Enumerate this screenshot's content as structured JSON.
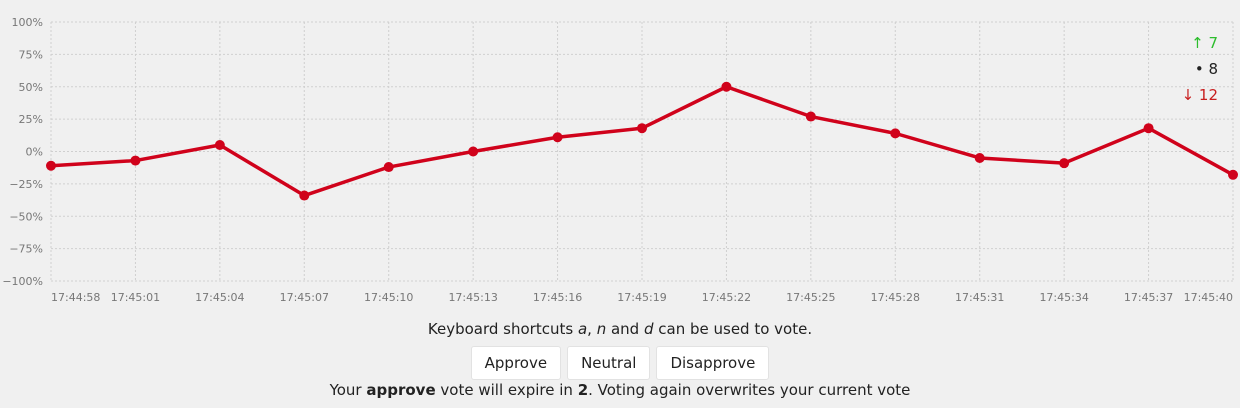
{
  "chart_data": {
    "type": "line",
    "x": [
      "17:44:58",
      "17:45:01",
      "17:45:04",
      "17:45:07",
      "17:45:10",
      "17:45:13",
      "17:45:16",
      "17:45:19",
      "17:45:22",
      "17:45:25",
      "17:45:28",
      "17:45:31",
      "17:45:34",
      "17:45:37",
      "17:45:40"
    ],
    "series": [
      {
        "values": [
          -11,
          -7,
          5,
          -34,
          -12,
          0,
          11,
          18,
          50,
          27,
          14,
          -5,
          -9,
          18,
          -18
        ]
      }
    ],
    "yticks": [
      "100%",
      "75%",
      "50%",
      "25%",
      "0%",
      "−25%",
      "−50%",
      "−75%",
      "−100%"
    ],
    "ylim": [
      -100,
      100
    ],
    "grid": true,
    "line_color": "#d0021b"
  },
  "tally": {
    "up": "↑ 7",
    "neutral": "• 8",
    "down": "↓ 12"
  },
  "shortcuts": {
    "pre": "Keyboard shortcuts ",
    "a": "a",
    "sep1": ", ",
    "n": "n",
    "mid": " and ",
    "d": "d",
    "post": " can be used to vote."
  },
  "buttons": {
    "approve": "Approve",
    "neutral": "Neutral",
    "disapprove": "Disapprove"
  },
  "status": {
    "pre": "Your ",
    "vote": "approve",
    "mid": " vote will expire in ",
    "count": "2",
    "post": ". Voting again overwrites your current vote"
  }
}
